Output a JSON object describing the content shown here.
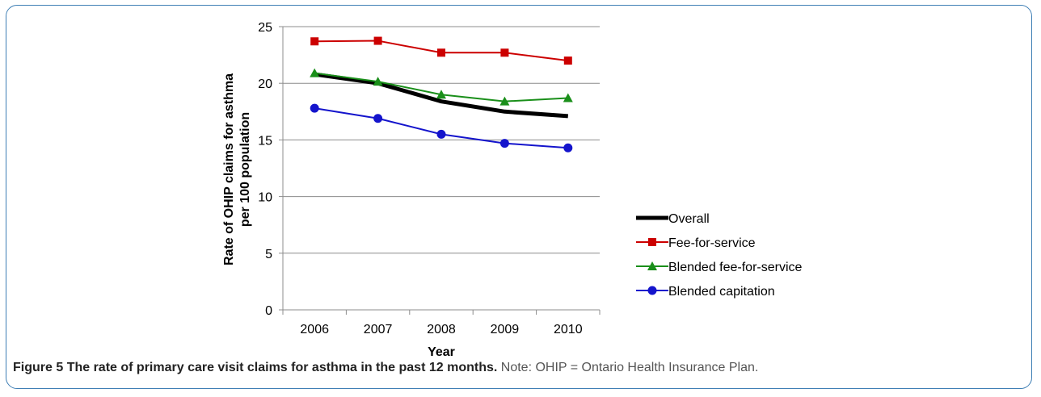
{
  "caption": {
    "figure_label": "Figure 5",
    "title": "The rate of primary care visit claims for asthma in the past 12 months.",
    "note": "Note: OHIP = Ontario Health Insurance Plan."
  },
  "chart_data": {
    "type": "line",
    "categories": [
      "2006",
      "2007",
      "2008",
      "2009",
      "2010"
    ],
    "xlabel": "Year",
    "ylabel_lines": [
      "Rate of OHIP claims for asthma",
      "per 100 population"
    ],
    "ylim": [
      0,
      25
    ],
    "yticks": [
      0,
      5,
      10,
      15,
      20,
      25
    ],
    "grid": true,
    "legend_position": "right",
    "series": [
      {
        "name": "Overall",
        "values": [
          20.8,
          20.0,
          18.4,
          17.5,
          17.1
        ],
        "color": "#000000",
        "marker": "none"
      },
      {
        "name": "Fee-for-service",
        "values": [
          23.7,
          23.75,
          22.7,
          22.7,
          22.0
        ],
        "color": "#cc0000",
        "marker": "square"
      },
      {
        "name": "Blended fee-for-service",
        "values": [
          20.9,
          20.15,
          19.0,
          18.4,
          18.7
        ],
        "color": "#1a8f1a",
        "marker": "triangle"
      },
      {
        "name": "Blended capitation",
        "values": [
          17.8,
          16.9,
          15.5,
          14.7,
          14.3
        ],
        "color": "#1414cc",
        "marker": "circle"
      }
    ]
  }
}
